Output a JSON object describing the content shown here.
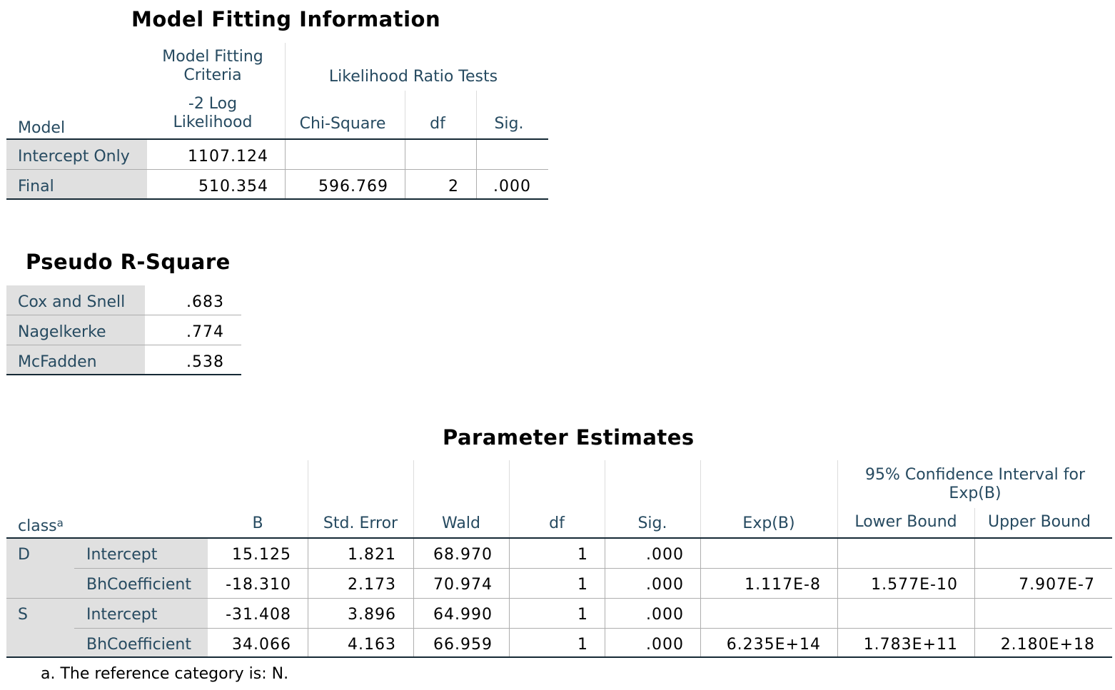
{
  "model_fitting": {
    "title": "Model Fitting Information",
    "headers": {
      "model": "Model",
      "criteria_group_line1": "Model Fitting",
      "criteria_group_line2": "Criteria",
      "criteria_col_line1": "-2 Log",
      "criteria_col_line2": "Likelihood",
      "lrt_group": "Likelihood Ratio Tests",
      "chi_square": "Chi-Square",
      "df": "df",
      "sig": "Sig."
    },
    "rows": [
      {
        "model": "Intercept Only",
        "neg2ll": "1107.124",
        "chi_square": "",
        "df": "",
        "sig": ""
      },
      {
        "model": "Final",
        "neg2ll": "510.354",
        "chi_square": "596.769",
        "df": "2",
        "sig": ".000"
      }
    ]
  },
  "pseudo_r2": {
    "title": "Pseudo R-Square",
    "rows": [
      {
        "label": "Cox and Snell",
        "value": ".683"
      },
      {
        "label": "Nagelkerke",
        "value": ".774"
      },
      {
        "label": "McFadden",
        "value": ".538"
      }
    ]
  },
  "parameter_estimates": {
    "title": "Parameter Estimates",
    "headers": {
      "class": "class",
      "class_sup": "a",
      "b": "B",
      "std_error": "Std. Error",
      "wald": "Wald",
      "df": "df",
      "sig": "Sig.",
      "exp_b": "Exp(B)",
      "ci_line1": "95% Confidence Interval for",
      "ci_line2": "Exp(B)",
      "lower": "Lower Bound",
      "upper": "Upper Bound"
    },
    "groups": [
      {
        "class": "D",
        "rows": [
          {
            "term": "Intercept",
            "b": "15.125",
            "se": "1.821",
            "wald": "68.970",
            "df": "1",
            "sig": ".000",
            "exp_b": "",
            "lower": "",
            "upper": ""
          },
          {
            "term": "BhCoefficient",
            "b": "-18.310",
            "se": "2.173",
            "wald": "70.974",
            "df": "1",
            "sig": ".000",
            "exp_b": "1.117E-8",
            "lower": "1.577E-10",
            "upper": "7.907E-7"
          }
        ]
      },
      {
        "class": "S",
        "rows": [
          {
            "term": "Intercept",
            "b": "-31.408",
            "se": "3.896",
            "wald": "64.990",
            "df": "1",
            "sig": ".000",
            "exp_b": "",
            "lower": "",
            "upper": ""
          },
          {
            "term": "BhCoefficient",
            "b": "34.066",
            "se": "4.163",
            "wald": "66.959",
            "df": "1",
            "sig": ".000",
            "exp_b": "6.235E+14",
            "lower": "1.783E+11",
            "upper": "2.180E+18"
          }
        ]
      }
    ],
    "footnote": "a. The reference category is: N."
  }
}
